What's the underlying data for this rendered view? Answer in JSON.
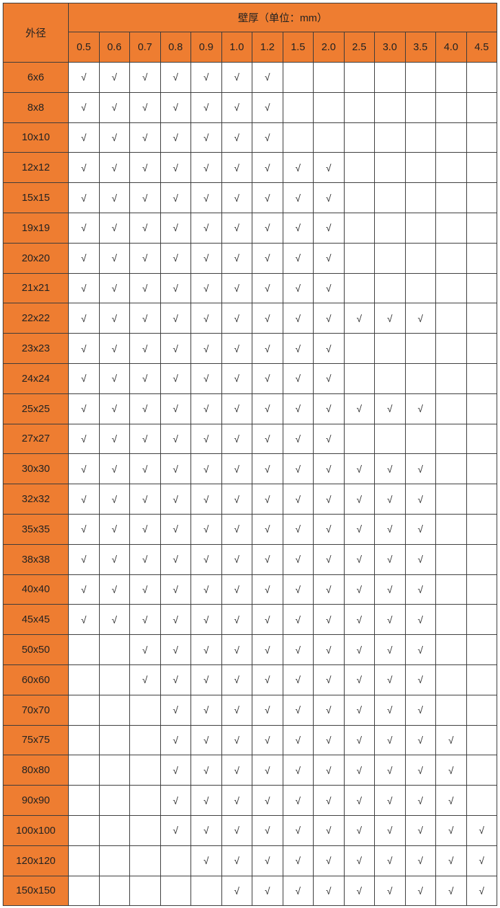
{
  "table": {
    "corner_label": "外径",
    "group_header": "壁厚（单位：mm）",
    "columns": [
      "0.5",
      "0.6",
      "0.7",
      "0.8",
      "0.9",
      "1.0",
      "1.2",
      "1.5",
      "2.0",
      "2.5",
      "3.0",
      "3.5",
      "4.0",
      "4.5"
    ],
    "mark": "√",
    "header_color": "#ee7d31",
    "rows": [
      {
        "label": "6x6",
        "cells": [
          "√",
          "√",
          "√",
          "√",
          "√",
          "√",
          "√",
          "",
          "",
          "",
          "",
          "",
          "",
          ""
        ]
      },
      {
        "label": "8x8",
        "cells": [
          "√",
          "√",
          "√",
          "√",
          "√",
          "√",
          "√",
          "",
          "",
          "",
          "",
          "",
          "",
          ""
        ]
      },
      {
        "label": "10x10",
        "cells": [
          "√",
          "√",
          "√",
          "√",
          "√",
          "√",
          "√",
          "",
          "",
          "",
          "",
          "",
          "",
          ""
        ]
      },
      {
        "label": "12x12",
        "cells": [
          "√",
          "√",
          "√",
          "√",
          "√",
          "√",
          "√",
          "√",
          "√",
          "",
          "",
          "",
          "",
          ""
        ]
      },
      {
        "label": "15x15",
        "cells": [
          "√",
          "√",
          "√",
          "√",
          "√",
          "√",
          "√",
          "√",
          "√",
          "",
          "",
          "",
          "",
          ""
        ]
      },
      {
        "label": "19x19",
        "cells": [
          "√",
          "√",
          "√",
          "√",
          "√",
          "√",
          "√",
          "√",
          "√",
          "",
          "",
          "",
          "",
          ""
        ]
      },
      {
        "label": "20x20",
        "cells": [
          "√",
          "√",
          "√",
          "√",
          "√",
          "√",
          "√",
          "√",
          "√",
          "",
          "",
          "",
          "",
          ""
        ]
      },
      {
        "label": "21x21",
        "cells": [
          "√",
          "√",
          "√",
          "√",
          "√",
          "√",
          "√",
          "√",
          "√",
          "",
          "",
          "",
          "",
          ""
        ]
      },
      {
        "label": "22x22",
        "cells": [
          "√",
          "√",
          "√",
          "√",
          "√",
          "√",
          "√",
          "√",
          "√",
          "√",
          "√",
          "√",
          "",
          ""
        ]
      },
      {
        "label": "23x23",
        "cells": [
          "√",
          "√",
          "√",
          "√",
          "√",
          "√",
          "√",
          "√",
          "√",
          "",
          "",
          "",
          "",
          ""
        ]
      },
      {
        "label": "24x24",
        "cells": [
          "√",
          "√",
          "√",
          "√",
          "√",
          "√",
          "√",
          "√",
          "√",
          "",
          "",
          "",
          "",
          ""
        ]
      },
      {
        "label": "25x25",
        "cells": [
          "√",
          "√",
          "√",
          "√",
          "√",
          "√",
          "√",
          "√",
          "√",
          "√",
          "√",
          "√",
          "",
          ""
        ]
      },
      {
        "label": "27x27",
        "cells": [
          "√",
          "√",
          "√",
          "√",
          "√",
          "√",
          "√",
          "√",
          "√",
          "",
          "",
          "",
          "",
          ""
        ]
      },
      {
        "label": "30x30",
        "cells": [
          "√",
          "√",
          "√",
          "√",
          "√",
          "√",
          "√",
          "√",
          "√",
          "√",
          "√",
          "√",
          "",
          ""
        ]
      },
      {
        "label": "32x32",
        "cells": [
          "√",
          "√",
          "√",
          "√",
          "√",
          "√",
          "√",
          "√",
          "√",
          "√",
          "√",
          "√",
          "",
          ""
        ]
      },
      {
        "label": "35x35",
        "cells": [
          "√",
          "√",
          "√",
          "√",
          "√",
          "√",
          "√",
          "√",
          "√",
          "√",
          "√",
          "√",
          "",
          ""
        ]
      },
      {
        "label": "38x38",
        "cells": [
          "√",
          "√",
          "√",
          "√",
          "√",
          "√",
          "√",
          "√",
          "√",
          "√",
          "√",
          "√",
          "",
          ""
        ]
      },
      {
        "label": "40x40",
        "cells": [
          "√",
          "√",
          "√",
          "√",
          "√",
          "√",
          "√",
          "√",
          "√",
          "√",
          "√",
          "√",
          "",
          ""
        ]
      },
      {
        "label": "45x45",
        "cells": [
          "√",
          "√",
          "√",
          "√",
          "√",
          "√",
          "√",
          "√",
          "√",
          "√",
          "√",
          "√",
          "",
          ""
        ]
      },
      {
        "label": "50x50",
        "cells": [
          "",
          "",
          "√",
          "√",
          "√",
          "√",
          "√",
          "√",
          "√",
          "√",
          "√",
          "√",
          "",
          ""
        ]
      },
      {
        "label": "60x60",
        "cells": [
          "",
          "",
          "√",
          "√",
          "√",
          "√",
          "√",
          "√",
          "√",
          "√",
          "√",
          "√",
          "",
          ""
        ]
      },
      {
        "label": "70x70",
        "cells": [
          "",
          "",
          "",
          "√",
          "√",
          "√",
          "√",
          "√",
          "√",
          "√",
          "√",
          "√",
          "",
          ""
        ]
      },
      {
        "label": "75x75",
        "cells": [
          "",
          "",
          "",
          "√",
          "√",
          "√",
          "√",
          "√",
          "√",
          "√",
          "√",
          "√",
          "√",
          ""
        ]
      },
      {
        "label": "80x80",
        "cells": [
          "",
          "",
          "",
          "√",
          "√",
          "√",
          "√",
          "√",
          "√",
          "√",
          "√",
          "√",
          "√",
          ""
        ]
      },
      {
        "label": "90x90",
        "cells": [
          "",
          "",
          "",
          "√",
          "√",
          "√",
          "√",
          "√",
          "√",
          "√",
          "√",
          "√",
          "√",
          ""
        ]
      },
      {
        "label": "100x100",
        "cells": [
          "",
          "",
          "",
          "√",
          "√",
          "√",
          "√",
          "√",
          "√",
          "√",
          "√",
          "√",
          "√",
          "√"
        ]
      },
      {
        "label": "120x120",
        "cells": [
          "",
          "",
          "",
          "",
          "√",
          "√",
          "√",
          "√",
          "√",
          "√",
          "√",
          "√",
          "√",
          "√"
        ]
      },
      {
        "label": "150x150",
        "cells": [
          "",
          "",
          "",
          "",
          "",
          "√",
          "√",
          "√",
          "√",
          "√",
          "√",
          "√",
          "√",
          "√"
        ]
      }
    ]
  }
}
